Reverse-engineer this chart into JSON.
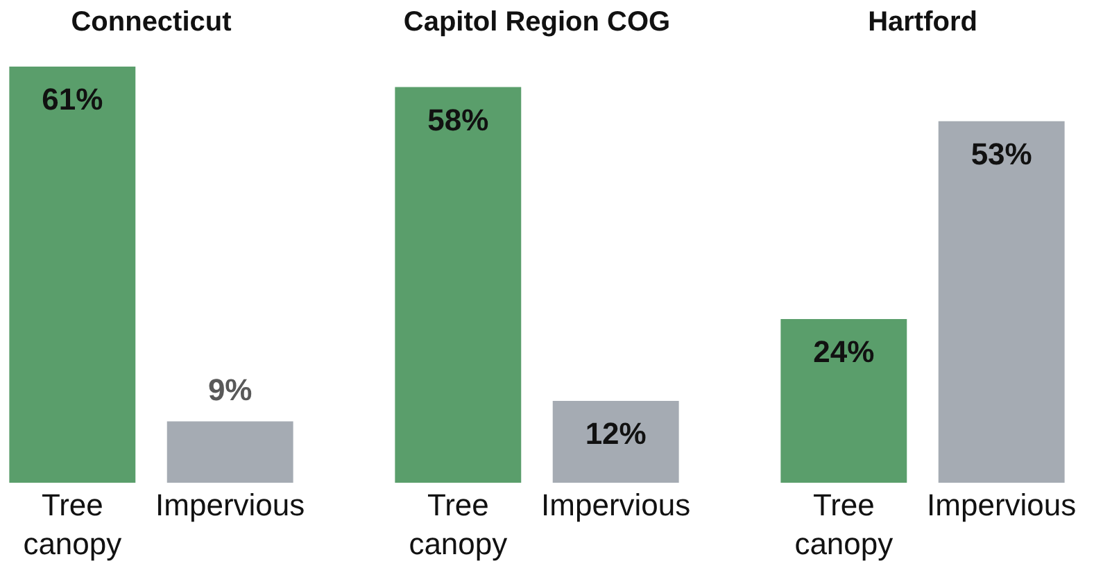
{
  "chart_data": [
    {
      "type": "bar",
      "title": "Connecticut",
      "categories": [
        "Tree canopy",
        "Impervious"
      ],
      "values": [
        61,
        9
      ],
      "value_labels": [
        "61%",
        "9%"
      ],
      "colors": [
        "#5a9e6b",
        "#a5abb3"
      ]
    },
    {
      "type": "bar",
      "title": "Capitol Region COG",
      "categories": [
        "Tree canopy",
        "Impervious"
      ],
      "values": [
        58,
        12
      ],
      "value_labels": [
        "58%",
        "12%"
      ],
      "colors": [
        "#5a9e6b",
        "#a5abb3"
      ]
    },
    {
      "type": "bar",
      "title": "Hartford",
      "categories": [
        "Tree canopy",
        "Impervious"
      ],
      "values": [
        24,
        53
      ],
      "value_labels": [
        "24%",
        "53%"
      ],
      "colors": [
        "#5a9e6b",
        "#a5abb3"
      ]
    }
  ]
}
